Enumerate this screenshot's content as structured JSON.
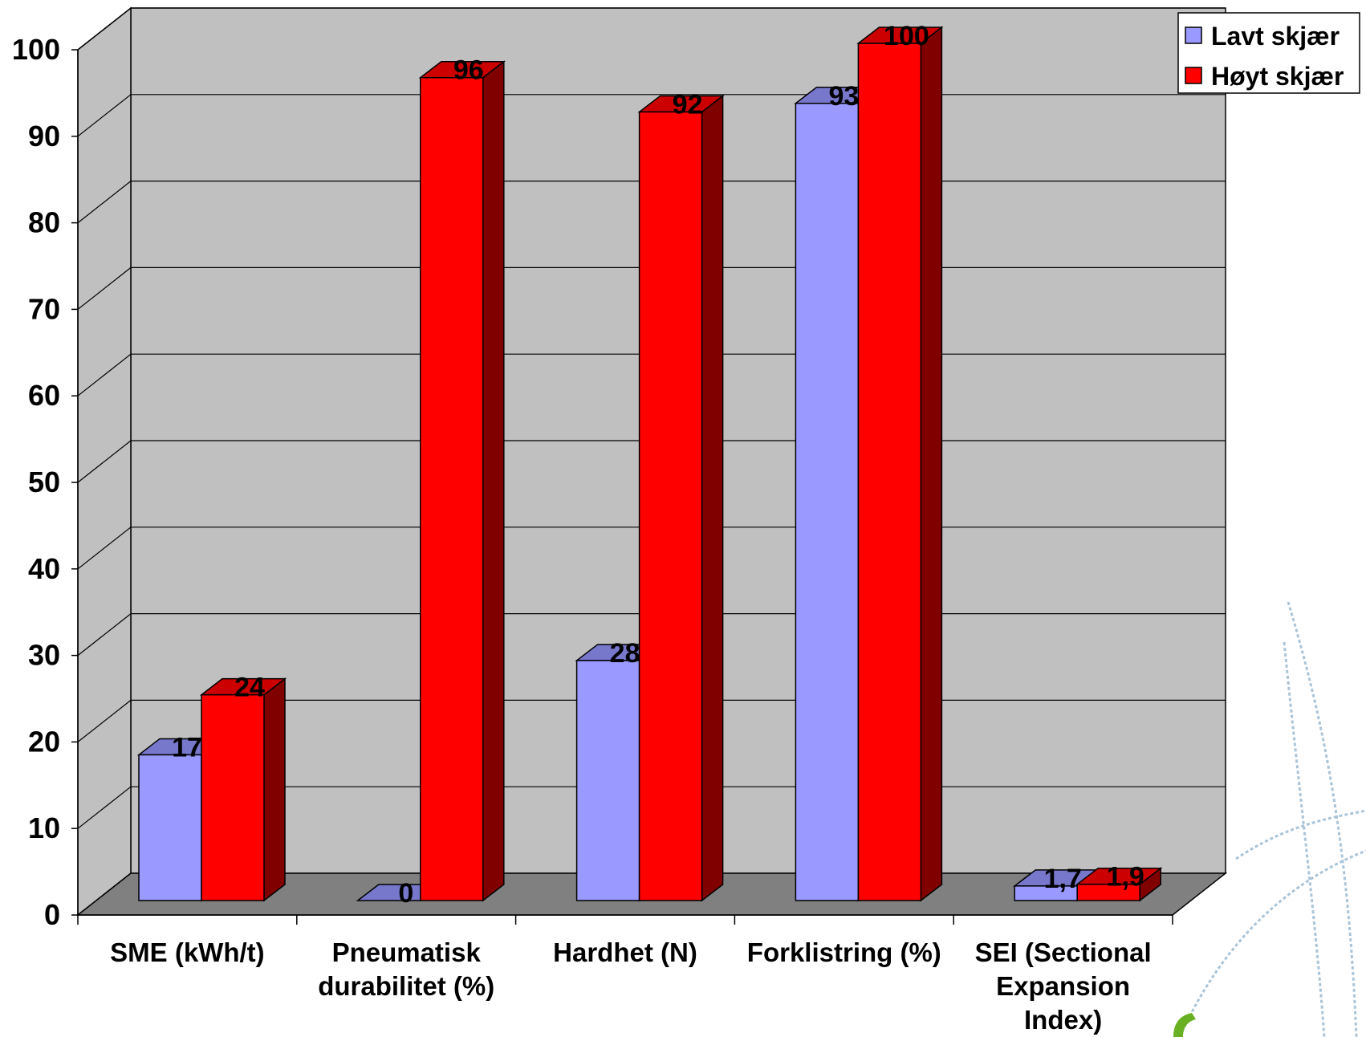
{
  "chart_data": {
    "type": "bar",
    "style": "3d-clustered-column",
    "categories": [
      "SME (kWh/t)",
      "Pneumatisk durabilitet (%)",
      "Hardhet (N)",
      "Forklistring (%)",
      "SEI (Sectional Expansion Index)"
    ],
    "series": [
      {
        "name": "Lavt skjær",
        "color": "#9999ff",
        "values": [
          17,
          0,
          28,
          93,
          1.7
        ],
        "labels": [
          "17",
          "0",
          "28",
          "93",
          "1,7"
        ]
      },
      {
        "name": "Høyt skjær",
        "color": "#ff0000",
        "values": [
          24,
          96,
          92,
          100,
          1.9
        ],
        "labels": [
          "24",
          "96",
          "92",
          "100",
          "1,9"
        ]
      }
    ],
    "ylim": [
      0,
      100
    ],
    "yticks": [
      "0",
      "10",
      "20",
      "30",
      "40",
      "50",
      "60",
      "70",
      "80",
      "90",
      "100"
    ],
    "grid": true,
    "legend_position": "top-right",
    "wall_color": "#c0c0c0",
    "floor_color": "#808080"
  }
}
